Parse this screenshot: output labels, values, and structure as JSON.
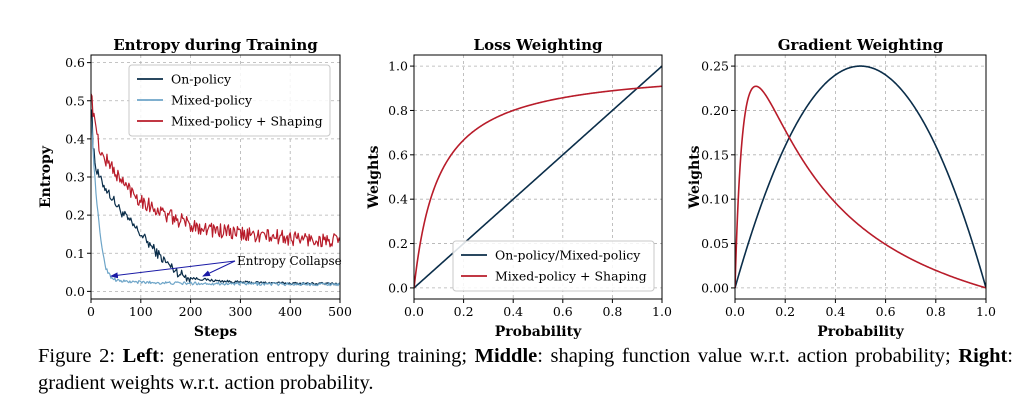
{
  "chart_data": [
    {
      "type": "line",
      "title": "Entropy during Training",
      "xlabel": "Steps",
      "ylabel": "Entropy",
      "xlim": [
        0,
        500
      ],
      "ylim": [
        -0.02,
        0.62
      ],
      "xticks": [
        0,
        100,
        200,
        300,
        400,
        500
      ],
      "yticks": [
        0.0,
        0.1,
        0.2,
        0.3,
        0.4,
        0.5,
        0.6
      ],
      "xtick_labels": [
        "0",
        "100",
        "200",
        "300",
        "400",
        "500"
      ],
      "ytick_labels": [
        "0.0",
        "0.1",
        "0.2",
        "0.3",
        "0.4",
        "0.5",
        "0.6"
      ],
      "grid": true,
      "legend_position": "top-right",
      "series": [
        {
          "name": "On-policy",
          "color": "#0b2e4a",
          "x": [
            0,
            2,
            5,
            10,
            20,
            40,
            60,
            80,
            100,
            120,
            140,
            160,
            180,
            200,
            250,
            300,
            400,
            500
          ],
          "y": [
            0.47,
            0.44,
            0.38,
            0.32,
            0.29,
            0.25,
            0.21,
            0.18,
            0.15,
            0.12,
            0.09,
            0.065,
            0.045,
            0.035,
            0.028,
            0.024,
            0.021,
            0.02
          ]
        },
        {
          "name": "Mixed-policy",
          "color": "#6ea5c8",
          "x": [
            0,
            3,
            6,
            10,
            15,
            20,
            30,
            40,
            50,
            60,
            80,
            100,
            150,
            200,
            300,
            400,
            500
          ],
          "y": [
            0.46,
            0.4,
            0.33,
            0.26,
            0.19,
            0.13,
            0.06,
            0.038,
            0.03,
            0.027,
            0.025,
            0.024,
            0.022,
            0.021,
            0.02,
            0.019,
            0.019
          ]
        },
        {
          "name": "Mixed-policy + Shaping",
          "color": "#b81c2a",
          "x": [
            0,
            3,
            6,
            10,
            20,
            40,
            60,
            80,
            100,
            150,
            200,
            250,
            300,
            400,
            500
          ],
          "y": [
            0.55,
            0.51,
            0.47,
            0.42,
            0.36,
            0.33,
            0.29,
            0.265,
            0.24,
            0.2,
            0.175,
            0.16,
            0.15,
            0.14,
            0.13
          ]
        }
      ],
      "annotation": {
        "text": "Entropy Collapse",
        "color": "#1a1aa6",
        "arrow_targets": [
          [
            40,
            0.04
          ],
          [
            225,
            0.04
          ]
        ]
      }
    },
    {
      "type": "line",
      "title": "Loss Weighting",
      "xlabel": "Probability",
      "ylabel": "Weights",
      "xlim": [
        0.0,
        1.0
      ],
      "ylim": [
        -0.05,
        1.05
      ],
      "xticks": [
        0.0,
        0.2,
        0.4,
        0.6,
        0.8,
        1.0
      ],
      "yticks": [
        0.0,
        0.2,
        0.4,
        0.6,
        0.8,
        1.0
      ],
      "xtick_labels": [
        "0.0",
        "0.2",
        "0.4",
        "0.6",
        "0.8",
        "1.0"
      ],
      "ytick_labels": [
        "0.0",
        "0.2",
        "0.4",
        "0.6",
        "0.8",
        "1.0"
      ],
      "grid": true,
      "legend_position": "bottom-right",
      "series": [
        {
          "name": "On-policy/Mixed-policy",
          "color": "#0b2e4a",
          "function": "p"
        },
        {
          "name": "Mixed-policy + Shaping",
          "color": "#b81c2a",
          "function": "p/(p+0.1)"
        }
      ]
    },
    {
      "type": "line",
      "title": "Gradient Weighting",
      "xlabel": "Probability",
      "ylabel": "Weights",
      "xlim": [
        0.0,
        1.0
      ],
      "ylim": [
        -0.0125,
        0.2625
      ],
      "xticks": [
        0.0,
        0.2,
        0.4,
        0.6,
        0.8,
        1.0
      ],
      "yticks": [
        0.0,
        0.05,
        0.1,
        0.15,
        0.2,
        0.25
      ],
      "xtick_labels": [
        "0.0",
        "0.2",
        "0.4",
        "0.6",
        "0.8",
        "1.0"
      ],
      "ytick_labels": [
        "0.00",
        "0.05",
        "0.10",
        "0.15",
        "0.20",
        "0.25"
      ],
      "grid": true,
      "series": [
        {
          "name": "On-policy/Mixed-policy",
          "color": "#0b2e4a",
          "function": "p*(1-p)"
        },
        {
          "name": "Mixed-policy + Shaping",
          "color": "#b81c2a",
          "function": "0.1*p*(1-p)/(p+0.1)^2"
        }
      ]
    }
  ],
  "caption": {
    "prefix": "Figure 2: ",
    "left_label": "Left",
    "left_text": ": generation entropy during training; ",
    "middle_label": "Middle",
    "middle_text": ": shaping function value w.r.t. action probability; ",
    "right_label": "Right",
    "right_text": ": gradient weights w.r.t. action probability."
  }
}
